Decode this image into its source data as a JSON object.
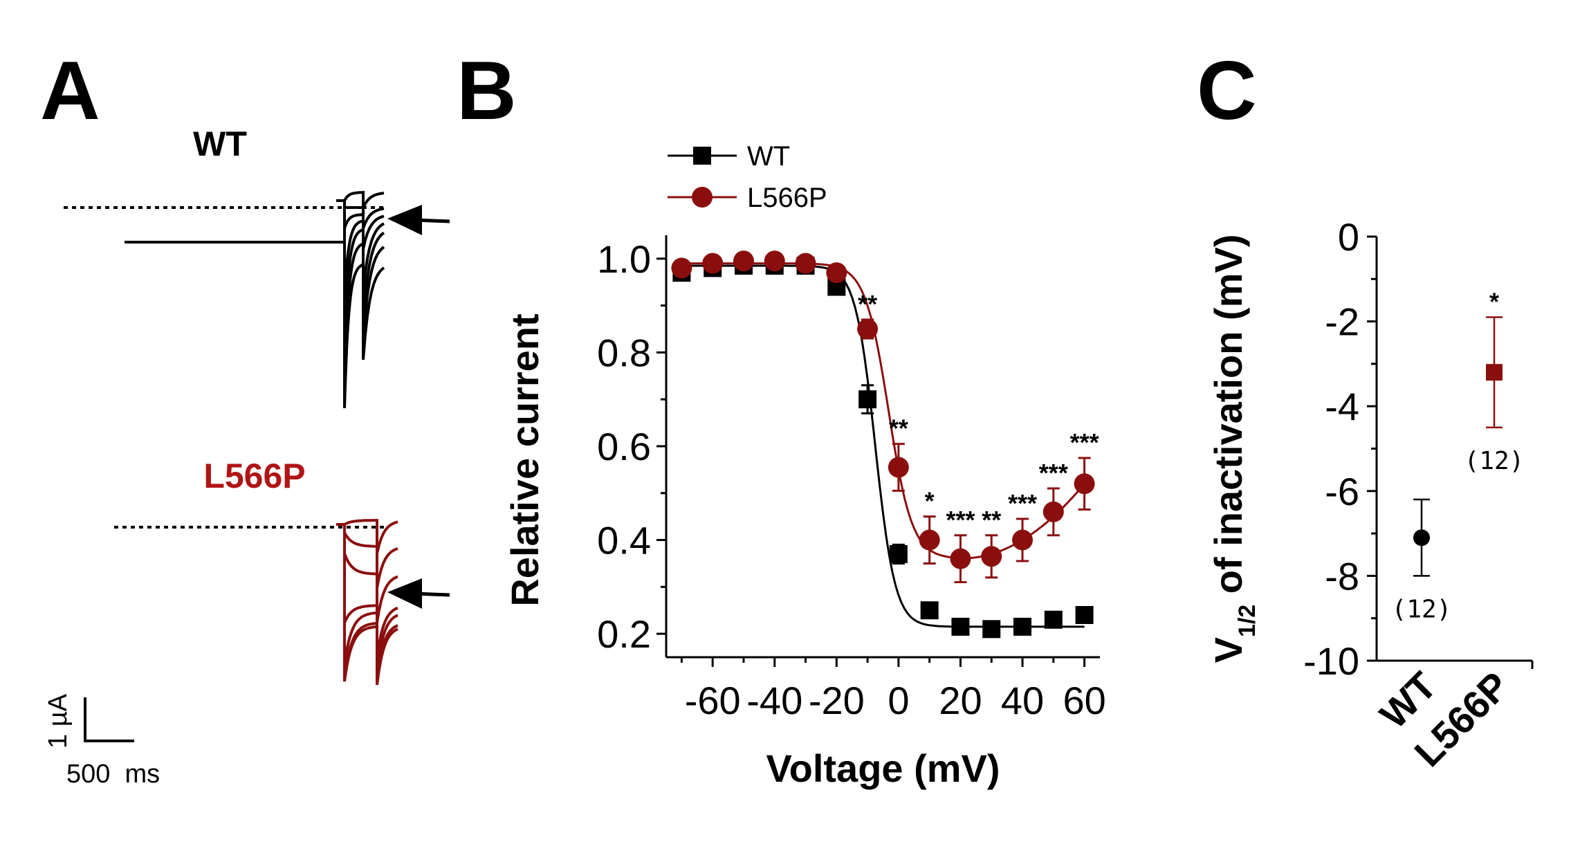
{
  "panels": {
    "a": {
      "letter": "A",
      "wt_title": "WT",
      "mut_title": "L566P",
      "scale_current": "1 µA",
      "scale_time": "500  ms"
    },
    "b": {
      "letter": "B"
    },
    "c": {
      "letter": "C"
    }
  },
  "colors": {
    "wt": "#000000",
    "mut": "#8b0e0e"
  },
  "chart_data": [
    {
      "id": "panel-b",
      "type": "scatter",
      "title": "",
      "xlabel": "Voltage (mV)",
      "ylabel": "Relative current",
      "xlim": [
        -75,
        65
      ],
      "ylim": [
        0.15,
        1.05
      ],
      "xticks": [
        -60,
        -40,
        -20,
        0,
        20,
        40,
        60
      ],
      "yticks": [
        0.2,
        0.4,
        0.6,
        0.8,
        1.0
      ],
      "xtick_labels": [
        "-60",
        "-40",
        "-20",
        "0",
        "20",
        "40",
        "60"
      ],
      "ytick_labels": [
        "0.2",
        "0.4",
        "0.6",
        "0.8",
        "1.0"
      ],
      "legend_position": "top-left",
      "x": [
        -70,
        -60,
        -50,
        -40,
        -30,
        -20,
        -10,
        0,
        10,
        20,
        30,
        40,
        50,
        60
      ],
      "series": [
        {
          "name": "WT",
          "marker": "square",
          "values": [
            0.97,
            0.98,
            0.985,
            0.985,
            0.985,
            0.94,
            0.7,
            0.37,
            0.25,
            0.215,
            0.21,
            0.215,
            0.23,
            0.24
          ],
          "errors": [
            0.01,
            0.01,
            0.01,
            0.01,
            0.01,
            0.01,
            0.03,
            0.02,
            0.01,
            0.01,
            0.01,
            0.01,
            0.01,
            0.01
          ],
          "fit": {
            "bottom": 0.215,
            "top": 0.985,
            "v_half": -7.5,
            "slope": 3.2
          }
        },
        {
          "name": "L566P",
          "marker": "circle",
          "values": [
            0.98,
            0.99,
            0.995,
            0.995,
            0.99,
            0.97,
            0.85,
            0.555,
            0.4,
            0.36,
            0.365,
            0.4,
            0.46,
            0.52
          ],
          "errors": [
            0.01,
            0.01,
            0.01,
            0.01,
            0.01,
            0.01,
            0.02,
            0.05,
            0.05,
            0.05,
            0.045,
            0.045,
            0.05,
            0.055
          ],
          "fit": {
            "bottom": 0.36,
            "top": 0.99,
            "v_half": -3.2,
            "slope": 3.8
          }
        }
      ],
      "annotations": [
        {
          "x": -10,
          "y": 0.85,
          "text": "**"
        },
        {
          "x": 0,
          "y": 0.555,
          "text": "**"
        },
        {
          "x": 10,
          "y": 0.4,
          "text": "*"
        },
        {
          "x": 20,
          "y": 0.36,
          "text": "***"
        },
        {
          "x": 30,
          "y": 0.365,
          "text": "**"
        },
        {
          "x": 40,
          "y": 0.4,
          "text": "***"
        },
        {
          "x": 50,
          "y": 0.46,
          "text": "***"
        },
        {
          "x": 60,
          "y": 0.52,
          "text": "***"
        }
      ]
    },
    {
      "id": "panel-c",
      "type": "scatter",
      "title": "",
      "xlabel": "",
      "ylabel_main": "V",
      "ylabel_sub": "1/2",
      "ylabel_rest": " of inactivation (mV)",
      "ylim": [
        -10,
        0
      ],
      "yticks": [
        0,
        -2,
        -4,
        -6,
        -8,
        -10
      ],
      "ytick_labels": [
        "0",
        "-2",
        "-4",
        "-6",
        "-8",
        "-10"
      ],
      "categories": [
        "WT",
        "L566P"
      ],
      "values": [
        -7.1,
        -3.2
      ],
      "errors": [
        0.9,
        1.3
      ],
      "markers": [
        "circle",
        "square"
      ],
      "n_labels": [
        "(12)",
        "(12)"
      ],
      "significance": [
        "",
        "*"
      ]
    }
  ]
}
